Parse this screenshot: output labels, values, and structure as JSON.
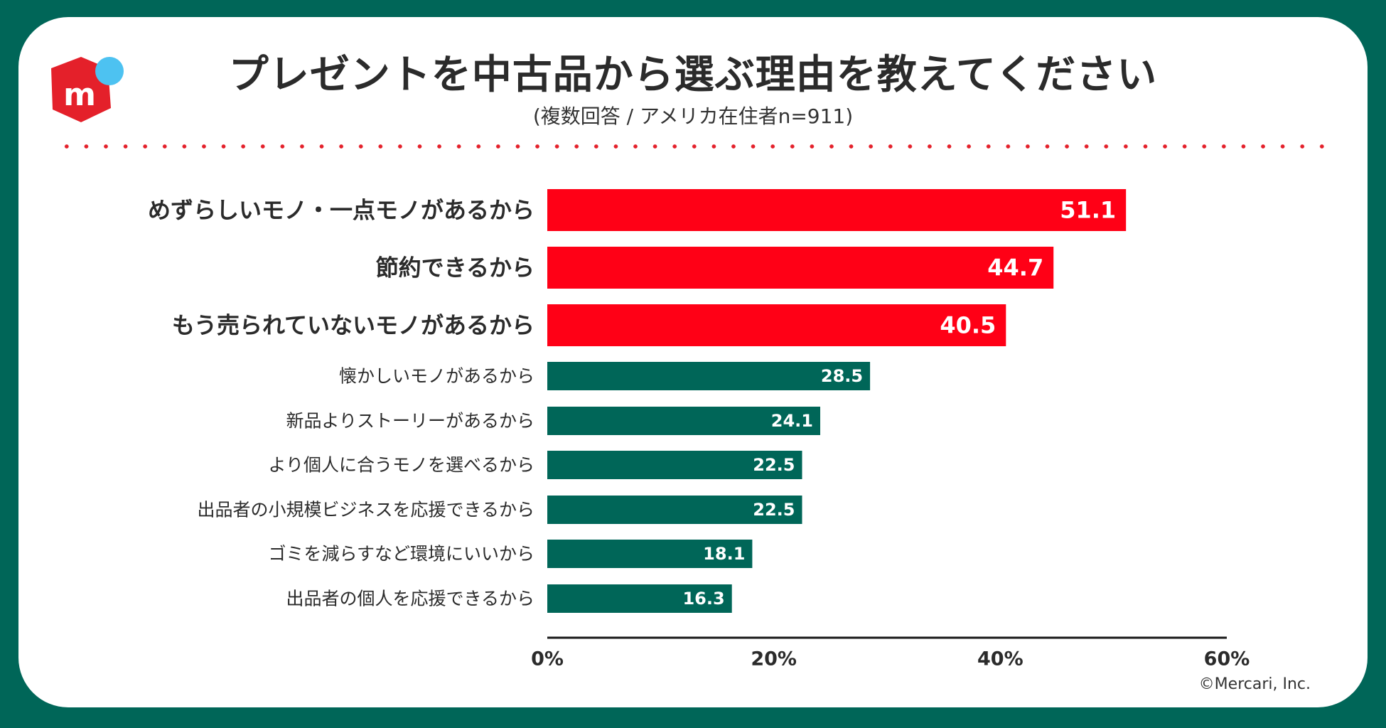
{
  "title": "プレゼントを中古品から選ぶ理由を教えてください",
  "subtitle": "(複数回答 / アメリカ在住者n=911)",
  "logo": {
    "letter": "m",
    "box_color": "#e4202a",
    "dot_color": "#4dc2f1"
  },
  "credit": "©Mercari, Inc.",
  "colors": {
    "highlight": "#ff0016",
    "normal": "#006658",
    "border": "#006658",
    "divider": "#e4202a"
  },
  "chart_data": {
    "type": "bar",
    "orientation": "horizontal",
    "title": "プレゼントを中古品から選ぶ理由を教えてください",
    "subtitle": "(複数回答 / アメリカ在住者n=911)",
    "categories": [
      "めずらしいモノ・一点モノがあるから",
      "節約できるから",
      "もう売られていないモノがあるから",
      "懐かしいモノがあるから",
      "新品よりストーリーがあるから",
      "より個人に合うモノを選べるから",
      "出品者の小規模ビジネスを応援できるから",
      "ゴミを減らすなど環境にいいから",
      "出品者の個人を応援できるから"
    ],
    "values": [
      51.1,
      44.7,
      40.5,
      28.5,
      24.1,
      22.5,
      22.5,
      18.1,
      16.3
    ],
    "value_labels": [
      "51.1",
      "44.7",
      "40.5",
      "28.5",
      "24.1",
      "22.5",
      "22.5",
      "18.1",
      "16.3"
    ],
    "highlighted": [
      true,
      true,
      true,
      false,
      false,
      false,
      false,
      false,
      false
    ],
    "xlim": [
      0,
      60
    ],
    "xticks": [
      "0%",
      "20%",
      "40%",
      "60%"
    ],
    "xlabel": "",
    "ylabel": "",
    "grid": false
  }
}
